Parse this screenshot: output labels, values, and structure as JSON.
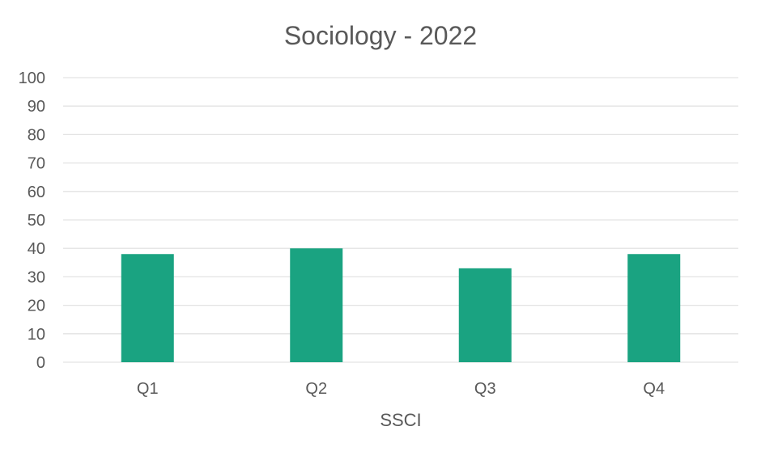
{
  "chart_data": {
    "type": "bar",
    "title": "Sociology - 2022",
    "xlabel": "SSCI",
    "ylabel": "",
    "categories": [
      "Q1",
      "Q2",
      "Q3",
      "Q4"
    ],
    "series": [
      {
        "values": [
          38,
          40,
          33,
          38
        ]
      }
    ],
    "yticks": [
      "0",
      "10",
      "20",
      "30",
      "40",
      "50",
      "60",
      "70",
      "80",
      "90",
      "100"
    ],
    "ylim": [
      0,
      100
    ],
    "grid": true,
    "legend": "none",
    "bar_color": "#1aa381"
  }
}
